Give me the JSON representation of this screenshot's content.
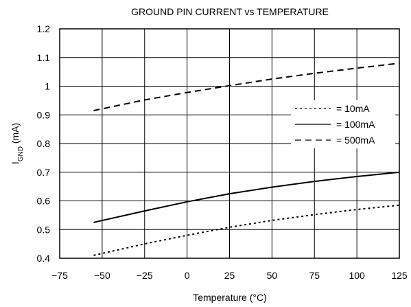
{
  "chart_data": {
    "type": "line",
    "title": "GROUND PIN CURRENT vs TEMPERATURE",
    "xlabel": "Temperature (°C)",
    "ylabel_main": "I",
    "ylabel_sub": "GND",
    "ylabel_unit": " (mA)",
    "xlim": [
      -75,
      125
    ],
    "ylim": [
      0.4,
      1.2
    ],
    "x_ticks": [
      -75,
      -50,
      -25,
      0,
      25,
      50,
      75,
      100,
      125
    ],
    "x_tick_labels": [
      "−75",
      "−50",
      "−25",
      "0",
      "25",
      "50",
      "75",
      "100",
      "125"
    ],
    "y_ticks": [
      0.4,
      0.5,
      0.6,
      0.7,
      0.8,
      0.9,
      1.0,
      1.1,
      1.2
    ],
    "y_tick_labels": [
      "0.4",
      "0.5",
      "0.6",
      "0.7",
      "0.8",
      "0.9",
      "1",
      "1.1",
      "1.2"
    ],
    "grid": true,
    "legend_position": "right",
    "series": [
      {
        "name": "= 10mA",
        "style": "dotted",
        "x": [
          -55,
          -25,
          0,
          25,
          50,
          75,
          100,
          125
        ],
        "y": [
          0.41,
          0.45,
          0.48,
          0.508,
          0.532,
          0.552,
          0.57,
          0.585
        ]
      },
      {
        "name": "= 100mA",
        "style": "solid",
        "x": [
          -55,
          -25,
          0,
          25,
          50,
          75,
          100,
          125
        ],
        "y": [
          0.525,
          0.565,
          0.597,
          0.625,
          0.648,
          0.668,
          0.685,
          0.7
        ]
      },
      {
        "name": "= 500mA",
        "style": "dashed",
        "x": [
          -55,
          -25,
          0,
          25,
          50,
          75,
          100,
          125
        ],
        "y": [
          0.915,
          0.952,
          0.978,
          1.002,
          1.025,
          1.045,
          1.063,
          1.08
        ]
      }
    ]
  }
}
